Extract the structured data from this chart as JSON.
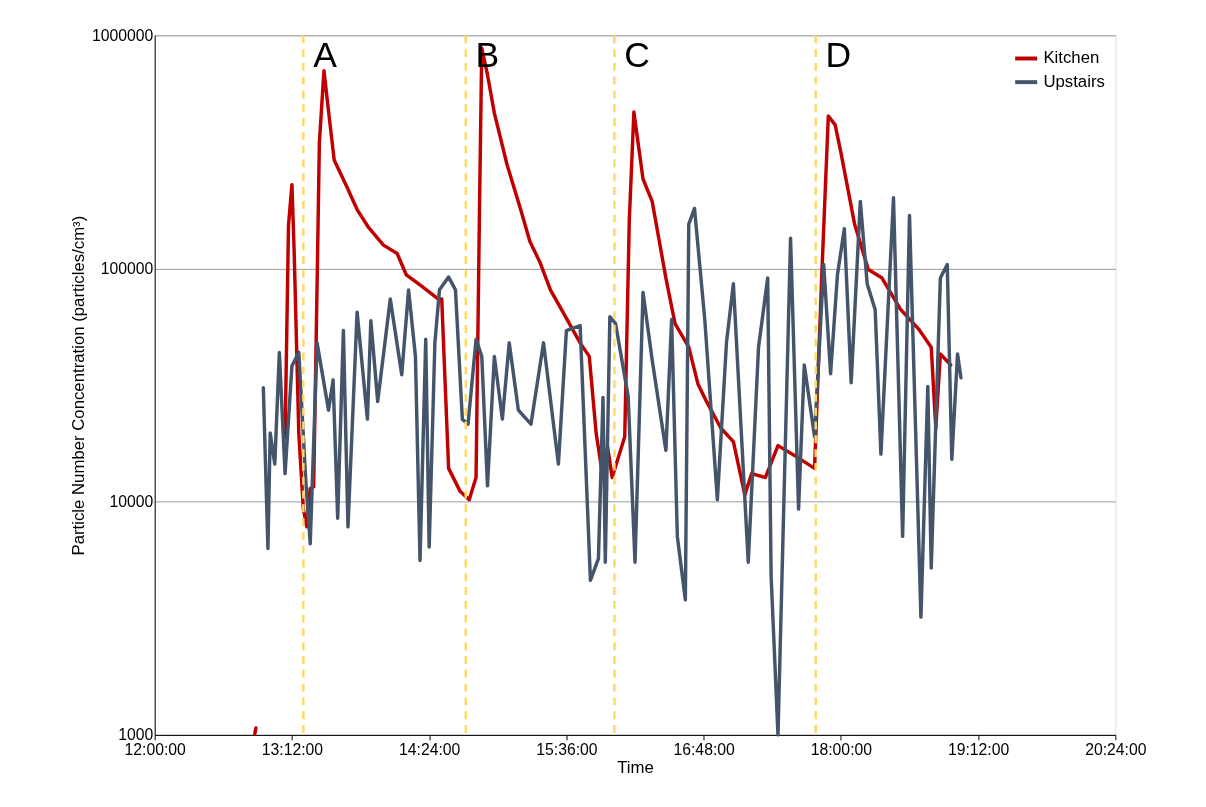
{
  "chart_data": {
    "type": "line",
    "xlabel": "Time",
    "ylabel": "Particle Number Concentration (particles/cm³)",
    "xlim": [
      12.0,
      20.4
    ],
    "xticks": [
      {
        "value": 12.0,
        "label": "12:00:00"
      },
      {
        "value": 13.2,
        "label": "13:12:00"
      },
      {
        "value": 14.4,
        "label": "14:24:00"
      },
      {
        "value": 15.6,
        "label": "15:36:00"
      },
      {
        "value": 16.8,
        "label": "16:48:00"
      },
      {
        "value": 18.0,
        "label": "18:00:00"
      },
      {
        "value": 19.2,
        "label": "19:12:00"
      },
      {
        "value": 20.4,
        "label": "20:24:00"
      }
    ],
    "ylim": [
      1000,
      1000000
    ],
    "yticks": [
      1000,
      10000,
      100000,
      1000000
    ],
    "log": "y",
    "grid": "y",
    "legend": "top right",
    "marker": "none",
    "line_style": "solid",
    "series": [
      {
        "name": "Kitchen",
        "color": "#c00000",
        "x": [
          12.875,
          12.885,
          12.9,
          13.14,
          13.17,
          13.2,
          13.22,
          13.26,
          13.3,
          13.33,
          13.36,
          13.39,
          13.42,
          13.44,
          13.48,
          13.52,
          13.57,
          13.68,
          13.77,
          13.87,
          14.0,
          14.12,
          14.2,
          14.32,
          14.48,
          14.51,
          14.54,
          14.57,
          14.67,
          14.75,
          14.81,
          14.84,
          14.86,
          14.91,
          14.97,
          15.08,
          15.2,
          15.28,
          15.37,
          15.46,
          15.57,
          15.72,
          15.8,
          15.86,
          15.92,
          15.96,
          16.0,
          16.11,
          16.15,
          16.19,
          16.27,
          16.35,
          16.47,
          16.55,
          16.67,
          16.75,
          16.82,
          16.95,
          17.06,
          17.16,
          17.22,
          17.34,
          17.45,
          17.62,
          17.77,
          17.83,
          17.89,
          17.95,
          18.0,
          18.12,
          18.24,
          18.36,
          18.52,
          18.68,
          18.79,
          18.83,
          18.87,
          18.96
        ],
        "values": [
          1010,
          1070,
          null,
          18800,
          153000,
          229000,
          116000,
          19700,
          9300,
          7800,
          11400,
          11600,
          85000,
          347000,
          705000,
          473000,
          291000,
          224000,
          179000,
          150000,
          126000,
          116000,
          94000,
          85000,
          74000,
          74000,
          32000,
          13900,
          11100,
          10200,
          12700,
          179000,
          881000,
          678000,
          464000,
          280000,
          179000,
          131000,
          106000,
          81000,
          65000,
          48000,
          42000,
          19700,
          12600,
          17200,
          12700,
          19000,
          161000,
          469000,
          242000,
          194000,
          91000,
          58000,
          46000,
          32000,
          27200,
          20700,
          18100,
          10700,
          13200,
          12700,
          17400,
          15500,
          13900,
          86000,
          451000,
          413000,
          315000,
          155000,
          99000,
          91000,
          67000,
          55000,
          46000,
          20700,
          43000,
          38600
        ]
      },
      {
        "name": "Upstairs",
        "color": "#44546a",
        "x": [
          12.95,
          12.99,
          13.01,
          13.05,
          13.09,
          13.14,
          13.2,
          13.26,
          13.32,
          13.36,
          13.42,
          13.52,
          13.56,
          13.6,
          13.65,
          13.69,
          13.77,
          13.86,
          13.89,
          13.95,
          14.06,
          14.16,
          14.22,
          14.28,
          14.32,
          14.37,
          14.4,
          14.45,
          14.49,
          14.57,
          14.63,
          14.69,
          14.74,
          14.81,
          14.86,
          14.91,
          14.97,
          15.04,
          15.1,
          15.18,
          15.29,
          15.4,
          15.53,
          15.6,
          15.72,
          15.81,
          15.88,
          15.92,
          15.94,
          15.98,
          16.03,
          16.14,
          16.2,
          16.27,
          16.35,
          16.47,
          16.52,
          16.57,
          16.64,
          16.67,
          16.72,
          16.81,
          16.92,
          17.0,
          17.06,
          17.19,
          17.28,
          17.36,
          17.39,
          17.45,
          17.56,
          17.63,
          17.68,
          17.77,
          17.85,
          17.91,
          17.97,
          18.03,
          18.09,
          18.17,
          18.23,
          18.3,
          18.35,
          18.46,
          18.54,
          18.6,
          18.7,
          18.76,
          18.79,
          18.87,
          18.93,
          18.97,
          19.02,
          19.05
        ],
        "values": [
          30800,
          6300,
          19700,
          14500,
          43700,
          13200,
          38200,
          43700,
          12600,
          6600,
          48000,
          24700,
          33300,
          8500,
          54200,
          7800,
          65000,
          22600,
          59700,
          26900,
          74000,
          35000,
          81000,
          42000,
          5600,
          49700,
          6400,
          48000,
          81000,
          92000,
          81000,
          22600,
          21500,
          49700,
          42000,
          11700,
          42000,
          22600,
          48000,
          24700,
          21500,
          48000,
          14500,
          54200,
          56900,
          4600,
          5700,
          28000,
          5500,
          62100,
          58000,
          28300,
          5500,
          79000,
          40500,
          16600,
          60400,
          7100,
          3800,
          155000,
          181000,
          60400,
          10200,
          48300,
          86000,
          5500,
          46000,
          91000,
          4800,
          1000,
          135000,
          9300,
          38600,
          19000,
          104000,
          35400,
          94000,
          148000,
          32400,
          194000,
          86000,
          66500,
          16000,
          201000,
          7100,
          169000,
          3200,
          31200,
          5200,
          91000,
          104000,
          15200,
          43000,
          34000
        ]
      }
    ],
    "ref_lines": [
      {
        "axis": "x",
        "value": 13.3,
        "label": "A",
        "color": "#ffd966",
        "line_style": "dashed"
      },
      {
        "axis": "x",
        "value": 14.72,
        "label": "B",
        "color": "#ffd966",
        "line_style": "dashed"
      },
      {
        "axis": "x",
        "value": 16.02,
        "label": "C",
        "color": "#ffd966",
        "line_style": "dashed"
      },
      {
        "axis": "x",
        "value": 17.78,
        "label": "D",
        "color": "#ffd966",
        "line_style": "dashed"
      }
    ]
  }
}
